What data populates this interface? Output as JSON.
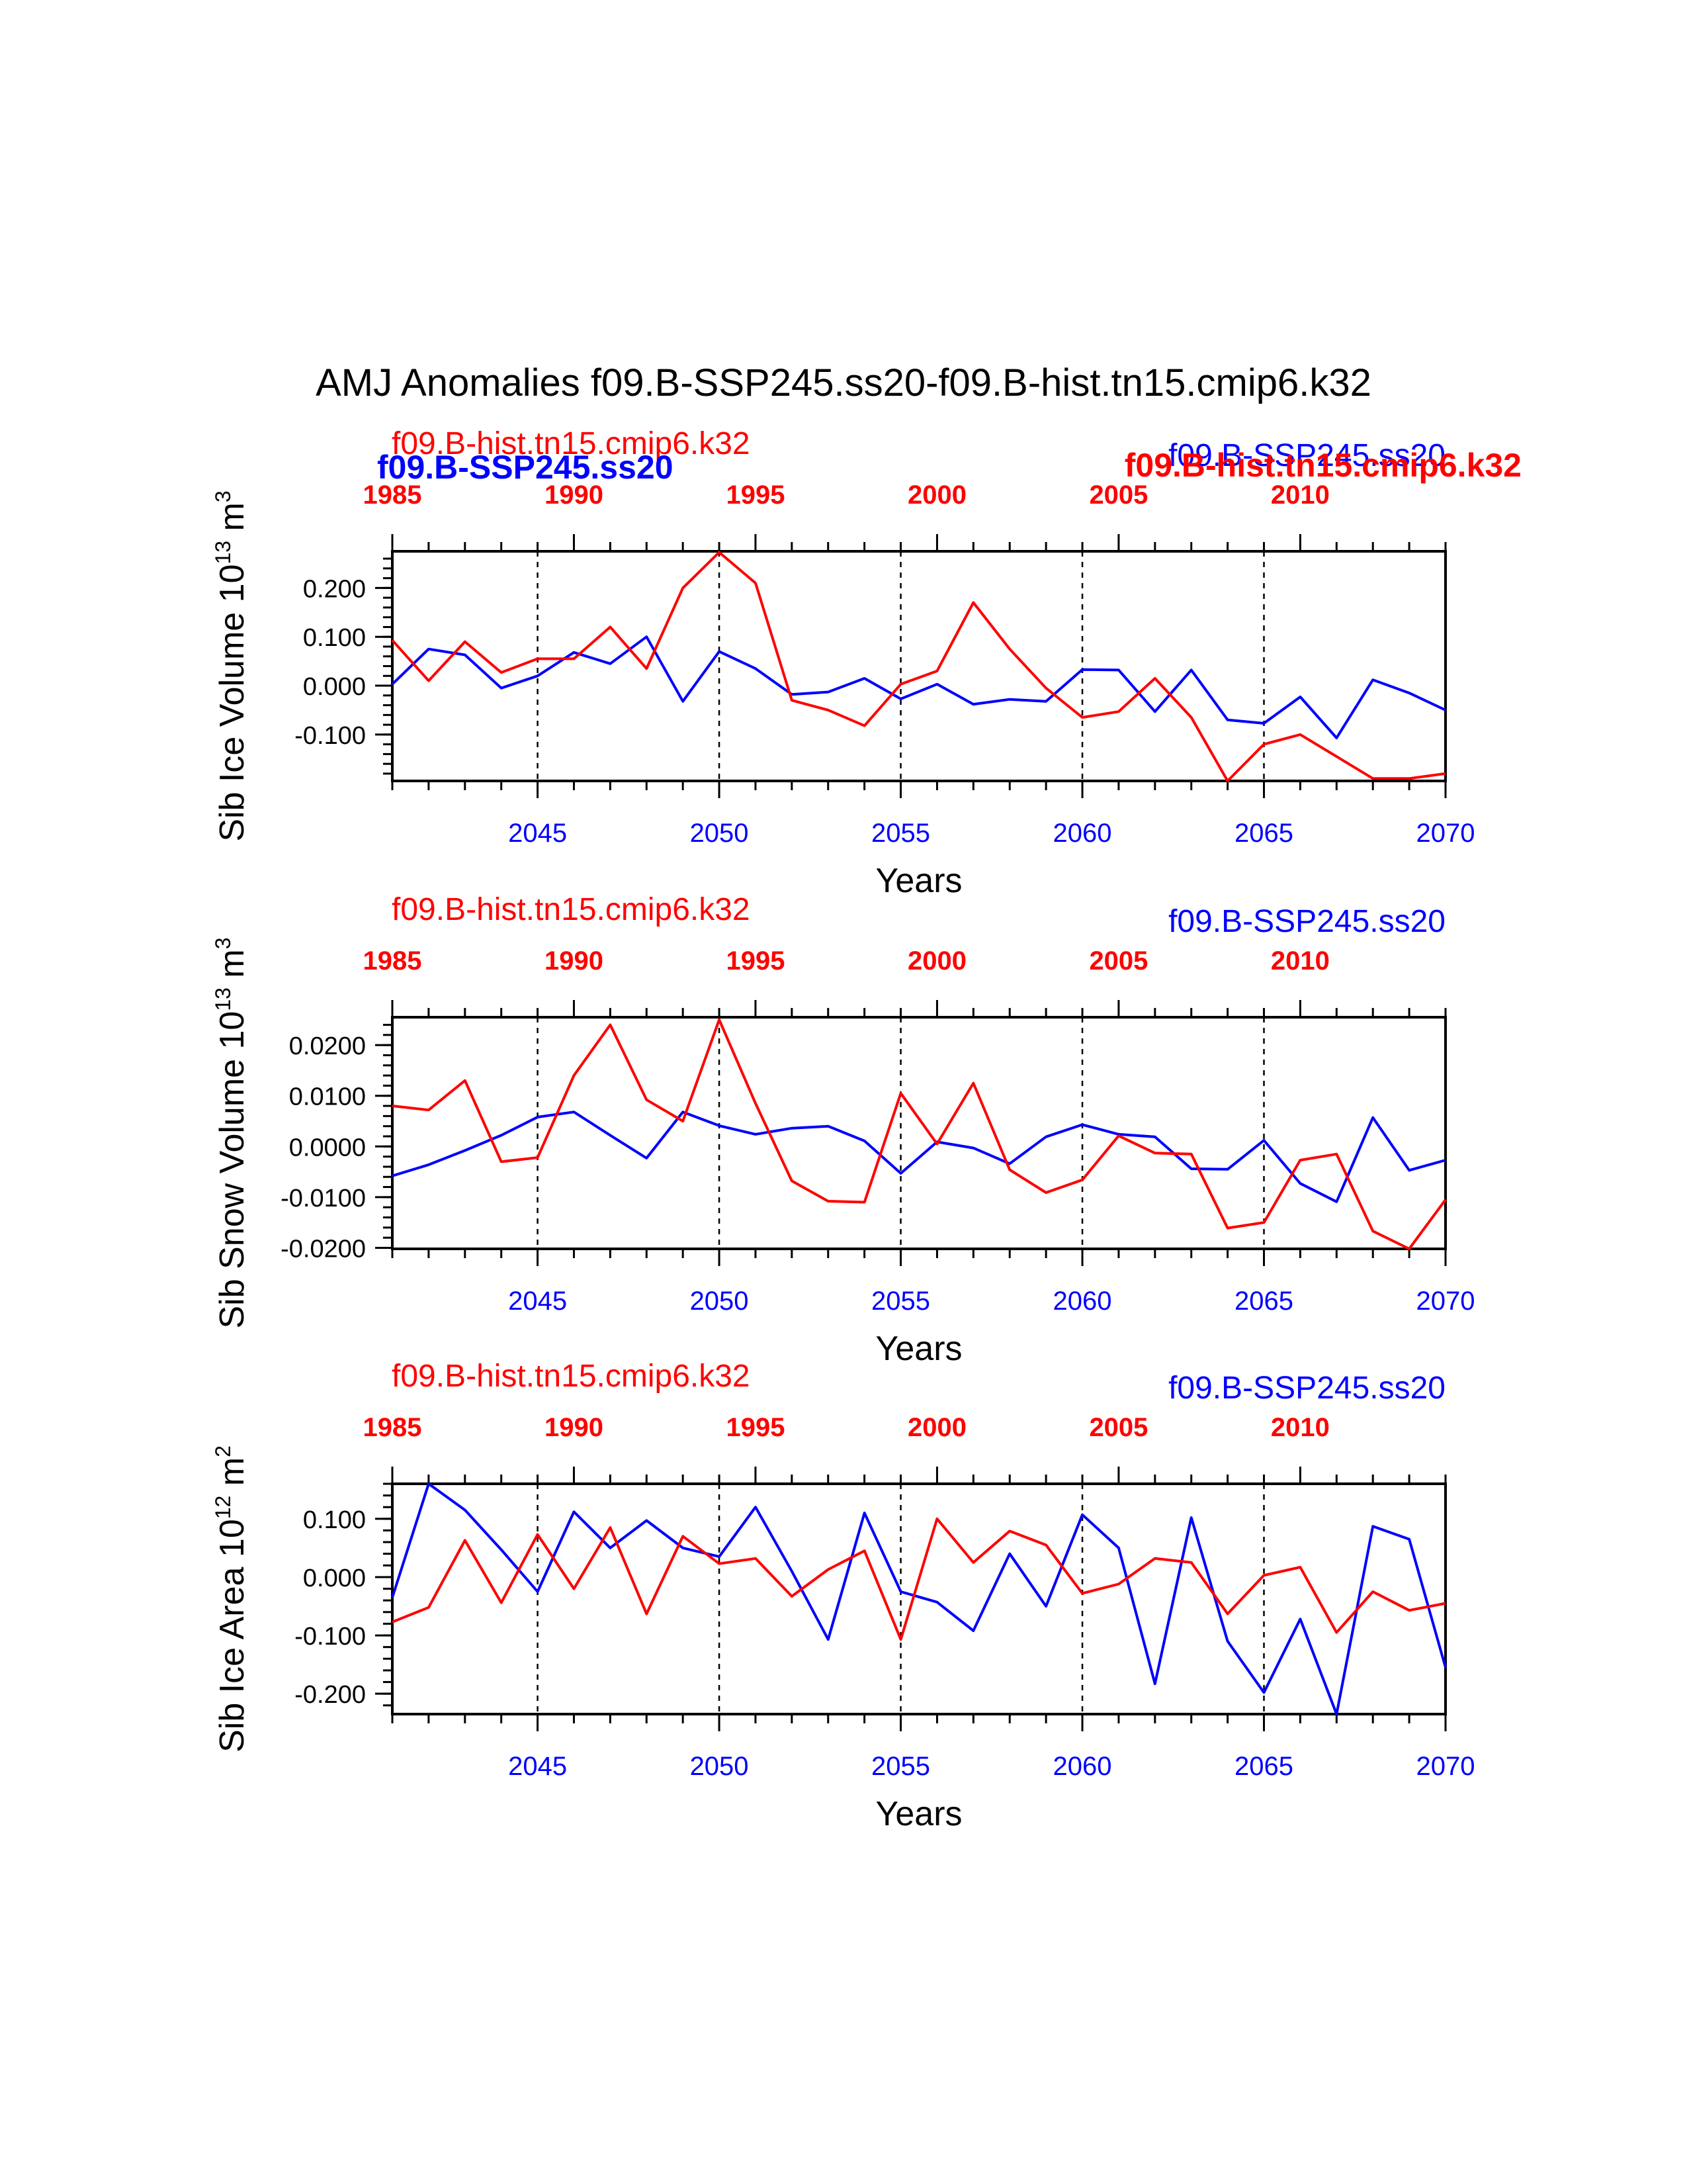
{
  "page_title": "AMJ Anomalies f09.B-SSP245.ss20-f09.B-hist.tn15.cmip6.k32",
  "overlay_labels": {
    "top_left_bold": "f09.B-SSP245.ss20",
    "top_right_bold": "f09.B-hist.tn15.cmip6.k32"
  },
  "colors": {
    "red": "#ff0000",
    "blue": "#0000ff",
    "black": "#000000"
  },
  "chart_data": [
    {
      "type": "line",
      "ylabel": "Sib Ice Volume 10",
      "ylabel_exp": "13",
      "ylabel_unit": " m",
      "ylabel_unit_exp": "3",
      "xlabel": "Years",
      "left_label": "f09.B-hist.tn15.cmip6.k32",
      "right_label": "f09.B-SSP245.ss20",
      "ylim": [
        -0.195,
        0.275
      ],
      "yticks": [
        -0.1,
        0.0,
        0.1,
        0.2
      ],
      "ytick_labels": [
        "-0.100",
        "0.000",
        "0.100",
        "0.200"
      ],
      "yminor": 0.02,
      "bottom_axis": {
        "range": [
          2041,
          2070
        ],
        "tick_labels": [
          "2045",
          "2050",
          "2055",
          "2060",
          "2065",
          "2070"
        ]
      },
      "top_axis": {
        "range": [
          1985,
          2014
        ],
        "tick_labels": [
          "1985",
          "1990",
          "1995",
          "2000",
          "2005",
          "2010"
        ]
      },
      "grid_lines_at": [
        2045,
        2050,
        2055,
        2060,
        2065
      ],
      "series": [
        {
          "name": "f09.B-SSP245.ss20",
          "color": "#0000ff",
          "x": [
            2041,
            2042,
            2043,
            2044,
            2045,
            2046,
            2047,
            2048,
            2049,
            2050,
            2051,
            2052,
            2053,
            2054,
            2055,
            2056,
            2057,
            2058,
            2059,
            2060,
            2061,
            2062,
            2063,
            2064,
            2065,
            2066,
            2067,
            2068,
            2069,
            2070
          ],
          "values": [
            0.003,
            0.075,
            0.063,
            -0.005,
            0.02,
            0.068,
            0.045,
            0.1,
            -0.032,
            0.07,
            0.035,
            -0.018,
            -0.013,
            0.015,
            -0.027,
            0.003,
            -0.038,
            -0.028,
            -0.032,
            0.033,
            0.032,
            -0.053,
            0.032,
            -0.07,
            -0.077,
            -0.023,
            -0.107,
            0.012,
            -0.015,
            -0.05
          ]
        },
        {
          "name": "f09.B-hist.tn15.cmip6.k32",
          "color": "#ff0000",
          "x": [
            2041,
            2042,
            2043,
            2044,
            2045,
            2046,
            2047,
            2048,
            2049,
            2050,
            2051,
            2052,
            2053,
            2054,
            2055,
            2056,
            2057,
            2058,
            2059,
            2060,
            2061,
            2062,
            2063,
            2064,
            2065,
            2066,
            2067,
            2068,
            2069,
            2070
          ],
          "values": [
            0.093,
            0.01,
            0.09,
            0.027,
            0.055,
            0.055,
            0.12,
            0.035,
            0.2,
            0.273,
            0.21,
            -0.03,
            -0.05,
            -0.082,
            0.003,
            0.03,
            0.17,
            0.075,
            -0.005,
            -0.065,
            -0.053,
            0.015,
            -0.065,
            -0.195,
            -0.12,
            -0.1,
            -0.145,
            -0.19,
            -0.19,
            -0.18
          ]
        }
      ]
    },
    {
      "type": "line",
      "ylabel": "Sib Snow Volume 10",
      "ylabel_exp": "13",
      "ylabel_unit": " m",
      "ylabel_unit_exp": "3",
      "xlabel": "Years",
      "left_label": "f09.B-hist.tn15.cmip6.k32",
      "right_label": "f09.B-SSP245.ss20",
      "ylim": [
        -0.0202,
        0.0255
      ],
      "yticks": [
        -0.02,
        -0.01,
        0.0,
        0.01,
        0.02
      ],
      "ytick_labels": [
        "-0.0200",
        "-0.0100",
        "0.0000",
        "0.0100",
        "0.0200"
      ],
      "yminor": 0.002,
      "bottom_axis": {
        "range": [
          2041,
          2070
        ],
        "tick_labels": [
          "2045",
          "2050",
          "2055",
          "2060",
          "2065",
          "2070"
        ]
      },
      "top_axis": {
        "range": [
          1985,
          2014
        ],
        "tick_labels": [
          "1985",
          "1990",
          "1995",
          "2000",
          "2005",
          "2010"
        ]
      },
      "grid_lines_at": [
        2045,
        2050,
        2055,
        2060,
        2065
      ],
      "series": [
        {
          "name": "f09.B-SSP245.ss20",
          "color": "#0000ff",
          "x": [
            2041,
            2042,
            2043,
            2044,
            2045,
            2046,
            2047,
            2048,
            2049,
            2050,
            2051,
            2052,
            2053,
            2054,
            2055,
            2056,
            2057,
            2058,
            2059,
            2060,
            2061,
            2062,
            2063,
            2064,
            2065,
            2066,
            2067,
            2068,
            2069,
            2070
          ],
          "values": [
            -0.0058,
            -0.0036,
            -0.0008,
            0.0022,
            0.0058,
            0.0068,
            0.0022,
            -0.0023,
            0.0068,
            0.0041,
            0.0024,
            0.0036,
            0.004,
            0.0011,
            -0.0053,
            0.0009,
            -0.0003,
            -0.0034,
            0.0019,
            0.0043,
            0.0024,
            0.0019,
            -0.0044,
            -0.0045,
            0.0012,
            -0.0073,
            -0.0109,
            0.0057,
            -0.0047,
            -0.0027
          ]
        },
        {
          "name": "f09.B-hist.tn15.cmip6.k32",
          "color": "#ff0000",
          "x": [
            2041,
            2042,
            2043,
            2044,
            2045,
            2046,
            2047,
            2048,
            2049,
            2050,
            2051,
            2052,
            2053,
            2054,
            2055,
            2056,
            2057,
            2058,
            2059,
            2060,
            2061,
            2062,
            2063,
            2064,
            2065,
            2066,
            2067,
            2068,
            2069,
            2070
          ],
          "values": [
            0.008,
            0.0072,
            0.013,
            -0.003,
            -0.0022,
            0.014,
            0.024,
            0.0092,
            0.005,
            0.025,
            0.0085,
            -0.0068,
            -0.0108,
            -0.011,
            0.0105,
            0.0005,
            0.0125,
            -0.0046,
            -0.0091,
            -0.0066,
            0.0021,
            -0.0013,
            -0.0015,
            -0.0161,
            -0.015,
            -0.0027,
            -0.0015,
            -0.0167,
            -0.0202,
            -0.0105
          ]
        }
      ]
    },
    {
      "type": "line",
      "ylabel": "Sib Ice Area 10",
      "ylabel_exp": "12",
      "ylabel_unit": " m",
      "ylabel_unit_exp": "2",
      "xlabel": "Years",
      "left_label": "f09.B-hist.tn15.cmip6.k32",
      "right_label": "f09.B-SSP245.ss20",
      "ylim": [
        -0.235,
        0.16
      ],
      "yticks": [
        -0.2,
        -0.1,
        0.0,
        0.1
      ],
      "ytick_labels": [
        "-0.200",
        "-0.100",
        "0.000",
        "0.100"
      ],
      "yminor": 0.02,
      "bottom_axis": {
        "range": [
          2041,
          2070
        ],
        "tick_labels": [
          "2045",
          "2050",
          "2055",
          "2060",
          "2065",
          "2070"
        ]
      },
      "top_axis": {
        "range": [
          1985,
          2014
        ],
        "tick_labels": [
          "1985",
          "1990",
          "1995",
          "2000",
          "2005",
          "2010"
        ]
      },
      "grid_lines_at": [
        2045,
        2050,
        2055,
        2060,
        2065
      ],
      "series": [
        {
          "name": "f09.B-SSP245.ss20",
          "color": "#0000ff",
          "x": [
            2041,
            2042,
            2043,
            2044,
            2045,
            2046,
            2047,
            2048,
            2049,
            2050,
            2051,
            2052,
            2053,
            2054,
            2055,
            2056,
            2057,
            2058,
            2059,
            2060,
            2061,
            2062,
            2063,
            2064,
            2065,
            2066,
            2067,
            2068,
            2069,
            2070
          ],
          "values": [
            -0.035,
            0.16,
            0.115,
            0.047,
            -0.025,
            0.112,
            0.05,
            0.097,
            0.05,
            0.035,
            0.12,
            0.01,
            -0.107,
            0.11,
            -0.025,
            -0.043,
            -0.092,
            0.04,
            -0.05,
            0.107,
            0.05,
            -0.183,
            0.102,
            -0.11,
            -0.198,
            -0.072,
            -0.235,
            0.087,
            0.065,
            -0.155
          ]
        },
        {
          "name": "f09.B-hist.tn15.cmip6.k32",
          "color": "#ff0000",
          "x": [
            2041,
            2042,
            2043,
            2044,
            2045,
            2046,
            2047,
            2048,
            2049,
            2050,
            2051,
            2052,
            2053,
            2054,
            2055,
            2056,
            2057,
            2058,
            2059,
            2060,
            2061,
            2062,
            2063,
            2064,
            2065,
            2066,
            2067,
            2068,
            2069,
            2070
          ],
          "values": [
            -0.077,
            -0.052,
            0.063,
            -0.044,
            0.073,
            -0.02,
            0.085,
            -0.063,
            0.07,
            0.023,
            0.032,
            -0.033,
            0.013,
            0.045,
            -0.107,
            0.1,
            0.025,
            0.079,
            0.055,
            -0.028,
            -0.012,
            0.032,
            0.025,
            -0.063,
            0.003,
            0.017,
            -0.095,
            -0.025,
            -0.057,
            -0.045
          ]
        }
      ]
    }
  ]
}
